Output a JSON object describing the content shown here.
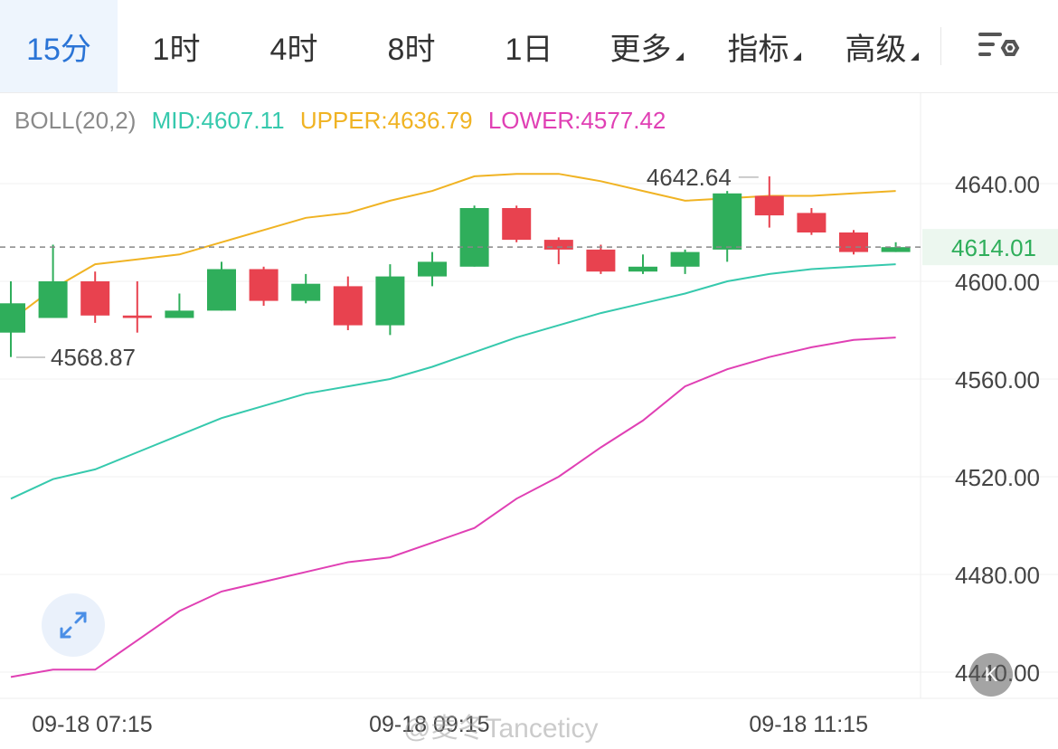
{
  "tabs": [
    {
      "label": "15分",
      "active": true,
      "dropdown": false
    },
    {
      "label": "1时",
      "active": false,
      "dropdown": false
    },
    {
      "label": "4时",
      "active": false,
      "dropdown": false
    },
    {
      "label": "8时",
      "active": false,
      "dropdown": false
    },
    {
      "label": "1日",
      "active": false,
      "dropdown": false
    },
    {
      "label": "更多",
      "active": false,
      "dropdown": true
    },
    {
      "label": "指标",
      "active": false,
      "dropdown": true
    },
    {
      "label": "高级",
      "active": false,
      "dropdown": true
    }
  ],
  "icons": {
    "settings": "chart-settings-icon",
    "expand": "expand-icon"
  },
  "indicator": {
    "name": "BOLL(20,2)",
    "mid": "MID:4607.11",
    "upper": "UPPER:4636.79",
    "lower": "LOWER:4577.42"
  },
  "k_button": "K",
  "watermark": "@麦冬Tanceticy",
  "colors": {
    "up": "#2fae5b",
    "down": "#e8424f",
    "mid": "#36c9ad",
    "upper": "#f0b323",
    "lower": "#e040b4",
    "accent": "#2a74d6"
  },
  "chart_data": {
    "type": "candlestick",
    "y_ticks": [
      "4640.00",
      "4600.00",
      "4560.00",
      "4520.00",
      "4480.00",
      "4440.00"
    ],
    "y_tick_values": [
      4640,
      4600,
      4560,
      4520,
      4480,
      4440
    ],
    "x_labels": [
      {
        "text": "09-18 07:15",
        "index": 0
      },
      {
        "text": "09-18 09:15",
        "index": 8
      },
      {
        "text": "09-18 11:15",
        "index": 17
      }
    ],
    "current_price": {
      "value": 4614.01,
      "label": "4614.01"
    },
    "high_label": {
      "value": 4642.64,
      "label": "4642.64",
      "index": 18
    },
    "low_label": {
      "value": 4568.87,
      "label": "4568.87",
      "index": 0
    },
    "candles": [
      {
        "o": 4579,
        "h": 4600,
        "l": 4569,
        "c": 4591
      },
      {
        "o": 4585,
        "h": 4615,
        "l": 4585,
        "c": 4600
      },
      {
        "o": 4600,
        "h": 4604,
        "l": 4583,
        "c": 4586
      },
      {
        "o": 4586,
        "h": 4600,
        "l": 4579,
        "c": 4585
      },
      {
        "o": 4585,
        "h": 4595,
        "l": 4585,
        "c": 4588
      },
      {
        "o": 4588,
        "h": 4608,
        "l": 4588,
        "c": 4605
      },
      {
        "o": 4605,
        "h": 4606,
        "l": 4590,
        "c": 4592
      },
      {
        "o": 4592,
        "h": 4603,
        "l": 4591,
        "c": 4599
      },
      {
        "o": 4598,
        "h": 4602,
        "l": 4580,
        "c": 4582
      },
      {
        "o": 4582,
        "h": 4607,
        "l": 4578,
        "c": 4602
      },
      {
        "o": 4602,
        "h": 4612,
        "l": 4598,
        "c": 4608
      },
      {
        "o": 4606,
        "h": 4631,
        "l": 4606,
        "c": 4630
      },
      {
        "o": 4630,
        "h": 4631,
        "l": 4616,
        "c": 4617
      },
      {
        "o": 4617,
        "h": 4618,
        "l": 4607,
        "c": 4613
      },
      {
        "o": 4613,
        "h": 4615,
        "l": 4603,
        "c": 4604
      },
      {
        "o": 4604,
        "h": 4611,
        "l": 4603,
        "c": 4606
      },
      {
        "o": 4606,
        "h": 4613,
        "l": 4603,
        "c": 4612
      },
      {
        "o": 4613,
        "h": 4637,
        "l": 4608,
        "c": 4636
      },
      {
        "o": 4635,
        "h": 4643,
        "l": 4622,
        "c": 4627
      },
      {
        "o": 4628,
        "h": 4630,
        "l": 4619,
        "c": 4620
      },
      {
        "o": 4620,
        "h": 4621,
        "l": 4611,
        "c": 4612
      },
      {
        "o": 4612,
        "h": 4616,
        "l": 4612,
        "c": 4614
      }
    ],
    "boll_upper": [
      4584,
      4597,
      4607,
      4609,
      4611,
      4616,
      4621,
      4626,
      4628,
      4633,
      4637,
      4643,
      4644,
      4644,
      4641,
      4637,
      4633,
      4634,
      4635,
      4635,
      4636,
      4637
    ],
    "boll_mid": [
      4511,
      4519,
      4523,
      4530,
      4537,
      4544,
      4549,
      4554,
      4557,
      4560,
      4565,
      4571,
      4577,
      4582,
      4587,
      4591,
      4595,
      4600,
      4603,
      4605,
      4606,
      4607
    ],
    "boll_lower": [
      4438,
      4441,
      4441,
      4453,
      4465,
      4473,
      4477,
      4481,
      4485,
      4487,
      4493,
      4499,
      4511,
      4520,
      4532,
      4543,
      4557,
      4564,
      4569,
      4573,
      4576,
      4577
    ]
  }
}
